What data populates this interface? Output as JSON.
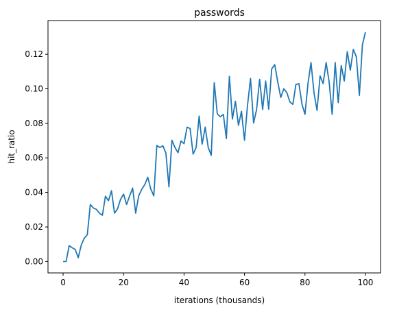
{
  "chart_data": {
    "type": "line",
    "title": "passwords",
    "xlabel": "iterations (thousands)",
    "ylabel": "hit_ratio",
    "xlim": [
      -5,
      105
    ],
    "ylim": [
      -0.0066,
      0.1395
    ],
    "xticks": [
      0,
      20,
      40,
      60,
      80,
      100
    ],
    "xtick_labels": [
      "0",
      "20",
      "40",
      "60",
      "80",
      "100"
    ],
    "yticks": [
      0.0,
      0.02,
      0.04,
      0.06,
      0.08,
      0.1,
      0.12
    ],
    "ytick_labels": [
      "0.00",
      "0.02",
      "0.04",
      "0.06",
      "0.08",
      "0.10",
      "0.12"
    ],
    "grid": false,
    "series": [
      {
        "color": "#1f77b4",
        "x": [
          0,
          1,
          2,
          3,
          4,
          5,
          6,
          7,
          8,
          9,
          10,
          11,
          12,
          13,
          14,
          15,
          16,
          17,
          18,
          19,
          20,
          21,
          22,
          23,
          24,
          25,
          26,
          27,
          28,
          29,
          30,
          31,
          32,
          33,
          34,
          35,
          36,
          37,
          38,
          39,
          40,
          41,
          42,
          43,
          44,
          45,
          46,
          47,
          48,
          49,
          50,
          51,
          52,
          53,
          54,
          55,
          56,
          57,
          58,
          59,
          60,
          61,
          62,
          63,
          64,
          65,
          66,
          67,
          68,
          69,
          70,
          71,
          72,
          73,
          74,
          75,
          76,
          77,
          78,
          79,
          80,
          81,
          82,
          83,
          84,
          85,
          86,
          87,
          88,
          89,
          90,
          91,
          92,
          93,
          94,
          95,
          96,
          97,
          98,
          99,
          100
        ],
        "y": [
          0.0,
          0.0,
          0.0092,
          0.008,
          0.007,
          0.0022,
          0.0095,
          0.0135,
          0.0155,
          0.033,
          0.031,
          0.0302,
          0.028,
          0.0268,
          0.0378,
          0.0352,
          0.041,
          0.028,
          0.0305,
          0.036,
          0.039,
          0.033,
          0.038,
          0.0425,
          0.028,
          0.038,
          0.0418,
          0.0445,
          0.0488,
          0.042,
          0.038,
          0.0672,
          0.066,
          0.067,
          0.0628,
          0.0432,
          0.0702,
          0.066,
          0.063,
          0.0698,
          0.0682,
          0.0778,
          0.077,
          0.0622,
          0.066,
          0.0842,
          0.068,
          0.0778,
          0.066,
          0.0615,
          0.1035,
          0.0855,
          0.0838,
          0.0852,
          0.0712,
          0.1072,
          0.0825,
          0.0928,
          0.0788,
          0.087,
          0.0702,
          0.0905,
          0.106,
          0.0802,
          0.088,
          0.1055,
          0.088,
          0.1045,
          0.0882,
          0.1115,
          0.114,
          0.104,
          0.095,
          0.1,
          0.0978,
          0.0925,
          0.091,
          0.1025,
          0.103,
          0.0912,
          0.0852,
          0.103,
          0.1152,
          0.0975,
          0.0875,
          0.1075,
          0.103,
          0.1152,
          0.104,
          0.0852,
          0.1152,
          0.092,
          0.1135,
          0.1045,
          0.1215,
          0.1108,
          0.1228,
          0.1185,
          0.0962,
          0.1255,
          0.1328
        ]
      }
    ]
  }
}
